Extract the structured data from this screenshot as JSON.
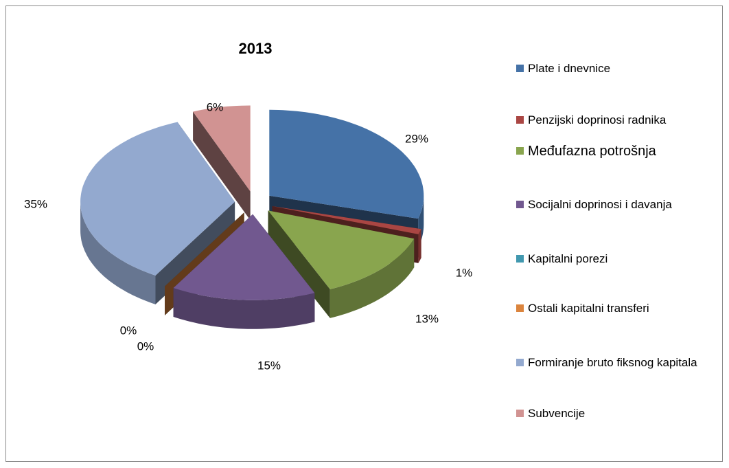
{
  "chart_data": {
    "type": "pie3d",
    "title": "2013",
    "categories": [
      "Plate i dnevnice",
      "Penzijski doprinosi radnika",
      "Međufazna potrošnja",
      "Socijalni doprinosi i davanja",
      "Kapitalni porezi",
      "Ostali kapitalni transferi",
      "Formiranje bruto fiksnog kapitala",
      "Subvencije"
    ],
    "values": [
      29,
      1,
      13,
      15,
      0,
      0,
      35,
      6
    ],
    "value_labels": [
      "29%",
      "1%",
      "13%",
      "15%",
      "0%",
      "0%",
      "35%",
      "6%"
    ],
    "colors": [
      "#4572a7",
      "#aa4643",
      "#89a54e",
      "#71588f",
      "#4198af",
      "#db843d",
      "#93a9cf",
      "#d19392"
    ],
    "legend": "right"
  }
}
